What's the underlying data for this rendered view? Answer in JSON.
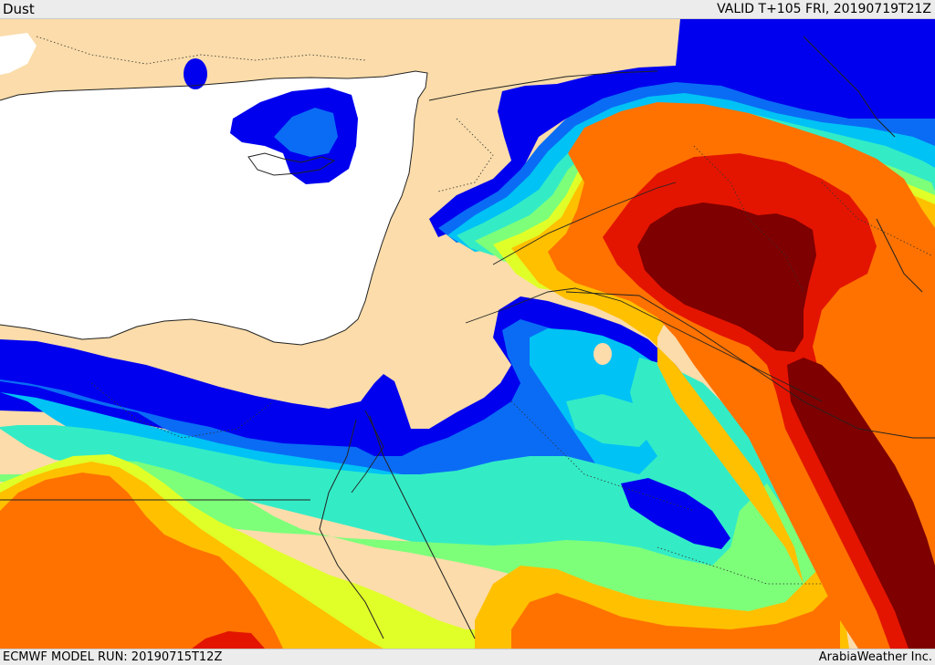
{
  "header": {
    "product_label": "Dust",
    "valid_time": "VALID T+105 FRI, 20190719T21Z"
  },
  "footer": {
    "model_run": "ECMWF MODEL RUN: 20190715T12Z",
    "brand": "ArabiaWeather Inc."
  },
  "map": {
    "colors": {
      "land": "#fbdcaa",
      "sea": "#ffffff",
      "dust_very_low": "#0000ee",
      "dust_low": "#0a6cf5",
      "dust_light": "#00c2f5",
      "dust_light_moderate": "#33ecc6",
      "dust_moderate": "#7dff7a",
      "dust_moderate_high": "#e0ff28",
      "dust_high": "#ffc000",
      "dust_very_high": "#ff7200",
      "dust_severe": "#e31500",
      "dust_extreme": "#7e0000",
      "border": "#222222"
    }
  }
}
